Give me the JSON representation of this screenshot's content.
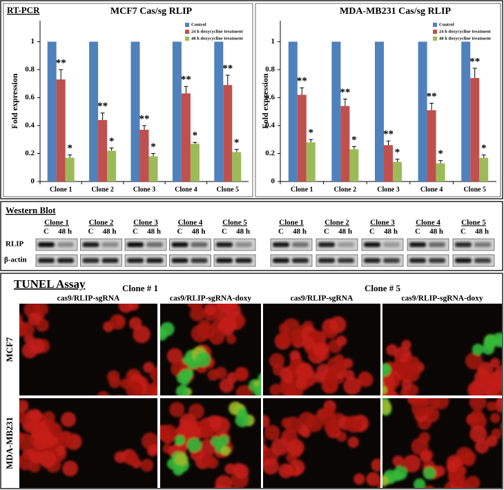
{
  "rt_pcr_label": "RT-PCR",
  "chart_data": [
    {
      "type": "bar",
      "title": "MCF7 Cas/sg RLIP",
      "ylabel": "Fold expression",
      "categories": [
        "Clone 1",
        "Clone 2",
        "Clone 3",
        "Clone 4",
        "Clone 5"
      ],
      "series": [
        {
          "name": "Control",
          "color": "#4f81bd",
          "values": [
            1,
            1,
            1,
            1,
            1
          ]
        },
        {
          "name": "24 h doxycycline treatment",
          "color": "#c0504d",
          "values": [
            0.73,
            0.44,
            0.37,
            0.63,
            0.69
          ],
          "errors": [
            0.07,
            0.05,
            0.03,
            0.05,
            0.07
          ],
          "significance": [
            "**",
            "**",
            "**",
            "**",
            "**"
          ]
        },
        {
          "name": "48 h doxycycline treatment",
          "color": "#9bbb59",
          "values": [
            0.17,
            0.22,
            0.18,
            0.27,
            0.21
          ],
          "errors": [
            0.02,
            0.02,
            0.02,
            0.01,
            0.02
          ],
          "significance": [
            "*",
            "*",
            "*",
            "*",
            "*"
          ]
        }
      ],
      "ylim": [
        0,
        1.15
      ],
      "yticks": [
        0,
        0.2,
        0.4,
        0.6,
        0.8,
        1
      ],
      "legend": "upper right"
    },
    {
      "type": "bar",
      "title": "MDA-MB231 Cas/sg RLIP",
      "ylabel": "Fold expression",
      "categories": [
        "Clone 1",
        "Clone 2",
        "Clone 3",
        "Clone 4",
        "Clone 5"
      ],
      "series": [
        {
          "name": "Control",
          "color": "#4f81bd",
          "values": [
            1,
            1,
            1,
            1,
            1
          ]
        },
        {
          "name": "24 h doxycycline treatment",
          "color": "#c0504d",
          "values": [
            0.62,
            0.54,
            0.26,
            0.51,
            0.74
          ],
          "errors": [
            0.05,
            0.05,
            0.03,
            0.05,
            0.07
          ],
          "significance": [
            "**",
            "**",
            "**",
            "**",
            "**"
          ]
        },
        {
          "name": "48 h doxycycline treatment",
          "color": "#9bbb59",
          "values": [
            0.28,
            0.23,
            0.14,
            0.13,
            0.17
          ],
          "errors": [
            0.02,
            0.02,
            0.02,
            0.02,
            0.02
          ],
          "significance": [
            "*",
            "*",
            "*",
            "*",
            "*"
          ]
        }
      ],
      "ylim": [
        0,
        1.15
      ],
      "yticks": [
        0,
        0.2,
        0.4,
        0.6,
        0.8,
        1
      ],
      "legend": "upper right"
    }
  ],
  "western_blot": {
    "title": "Western Blot",
    "panels": [
      {
        "clones": [
          "Clone 1",
          "Clone 2",
          "Clone 3",
          "Clone 4",
          "Clone 5"
        ]
      },
      {
        "clones": [
          "Clone 1",
          "Clone 2",
          "Clone 3",
          "Clone 4",
          "Clone 5"
        ]
      }
    ],
    "lanes": [
      "C",
      "48 h"
    ],
    "rows": [
      "RLIP",
      "β-actin"
    ]
  },
  "tunel": {
    "title": "TUNEL Assay",
    "groups": [
      {
        "clone": "Clone # 1",
        "columns": [
          "cas9/RLIP-sgRNA",
          "cas9/RLIP-sgRNA-doxy"
        ]
      },
      {
        "clone": "Clone # 5",
        "columns": [
          "cas9/RLIP-sgRNA",
          "cas9/RLIP-sgRNA-doxy"
        ]
      }
    ],
    "rows": [
      "MCF7",
      "MDA-MB231"
    ]
  }
}
